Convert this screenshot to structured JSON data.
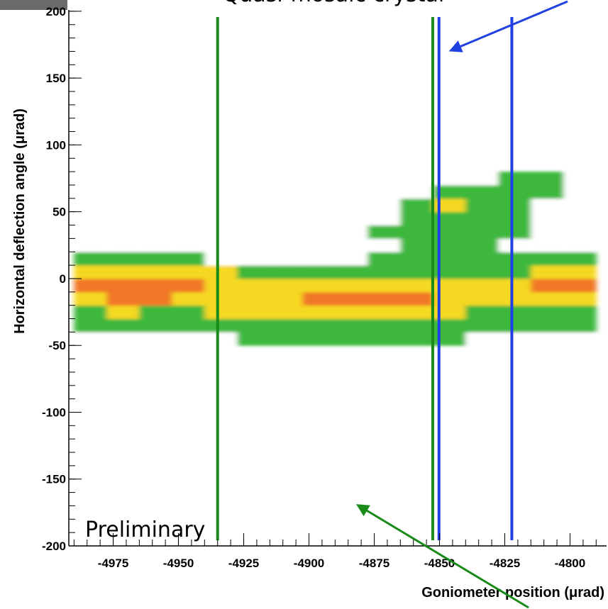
{
  "chart_data": {
    "type": "heatmap",
    "title": "Quasi-mosaic crystal",
    "annotation": "Preliminary",
    "x_label": "Goniometer position (μrad)",
    "y_label": "Horizontal deflection angle (μrad)",
    "xlim": [
      -4992,
      -4786
    ],
    "ylim": [
      -200,
      201
    ],
    "xticks": [
      -4975,
      -4950,
      -4925,
      -4900,
      -4875,
      -4850,
      -4825,
      -4800
    ],
    "yticks": [
      -200,
      -150,
      -100,
      -50,
      0,
      50,
      100,
      150,
      200
    ],
    "x_bins": [
      -4990,
      -4977.5,
      -4965,
      -4952.5,
      -4940,
      -4927.5,
      -4915,
      -4902.5,
      -4890,
      -4877.5,
      -4865,
      -4852.5,
      -4840,
      -4827.5,
      -4815,
      -4802.5,
      -4790
    ],
    "y_bins": [
      -50,
      -40,
      -30,
      -20,
      -10,
      0,
      10,
      20,
      30,
      40,
      50,
      60,
      70,
      80
    ],
    "colorscale": [
      "#ffffff",
      "#3cb83c",
      "#f5d820",
      "#f07828"
    ],
    "z": [
      [
        0,
        0,
        0,
        0,
        0,
        1,
        1,
        1,
        1,
        1,
        1,
        1,
        0,
        0,
        0,
        0
      ],
      [
        1,
        1,
        1,
        1,
        1,
        1,
        1,
        1,
        1,
        1,
        1,
        1,
        1,
        1,
        1,
        1
      ],
      [
        1,
        2,
        1,
        1,
        2,
        2,
        2,
        2,
        2,
        2,
        2,
        2,
        1,
        1,
        1,
        1
      ],
      [
        2,
        3,
        3,
        2,
        2,
        2,
        2,
        3,
        3,
        3,
        3,
        2,
        2,
        2,
        2,
        2
      ],
      [
        3,
        3,
        3,
        3,
        2,
        2,
        2,
        2,
        2,
        2,
        2,
        2,
        2,
        2,
        3,
        3
      ],
      [
        2,
        2,
        2,
        2,
        2,
        1,
        1,
        1,
        1,
        1,
        1,
        1,
        1,
        1,
        2,
        2
      ],
      [
        1,
        1,
        1,
        1,
        0,
        0,
        0,
        0,
        0,
        1,
        1,
        1,
        1,
        1,
        1,
        1
      ],
      [
        0,
        0,
        0,
        0,
        0,
        0,
        0,
        0,
        0,
        0,
        1,
        1,
        1,
        0,
        0,
        0
      ],
      [
        0,
        0,
        0,
        0,
        0,
        0,
        0,
        0,
        0,
        1,
        1,
        1,
        1,
        1,
        0,
        0
      ],
      [
        0,
        0,
        0,
        0,
        0,
        0,
        0,
        0,
        0,
        0,
        1,
        1,
        1,
        1,
        0,
        0
      ],
      [
        0,
        0,
        0,
        0,
        0,
        0,
        0,
        0,
        0,
        0,
        1,
        2,
        1,
        1,
        0,
        0
      ],
      [
        0,
        0,
        0,
        0,
        0,
        0,
        0,
        0,
        0,
        0,
        0,
        1,
        1,
        1,
        1,
        0
      ],
      [
        0,
        0,
        0,
        0,
        0,
        0,
        0,
        0,
        0,
        0,
        0,
        0,
        0,
        1,
        1,
        0
      ]
    ],
    "vertical_lines": [
      {
        "x": -4935,
        "color": "#1a8a1a"
      },
      {
        "x": -4852.6,
        "color": "#1a8a1a"
      },
      {
        "x": -4850.2,
        "color": "#1f3fe8"
      },
      {
        "x": -4822.3,
        "color": "#1f3fe8"
      }
    ]
  }
}
